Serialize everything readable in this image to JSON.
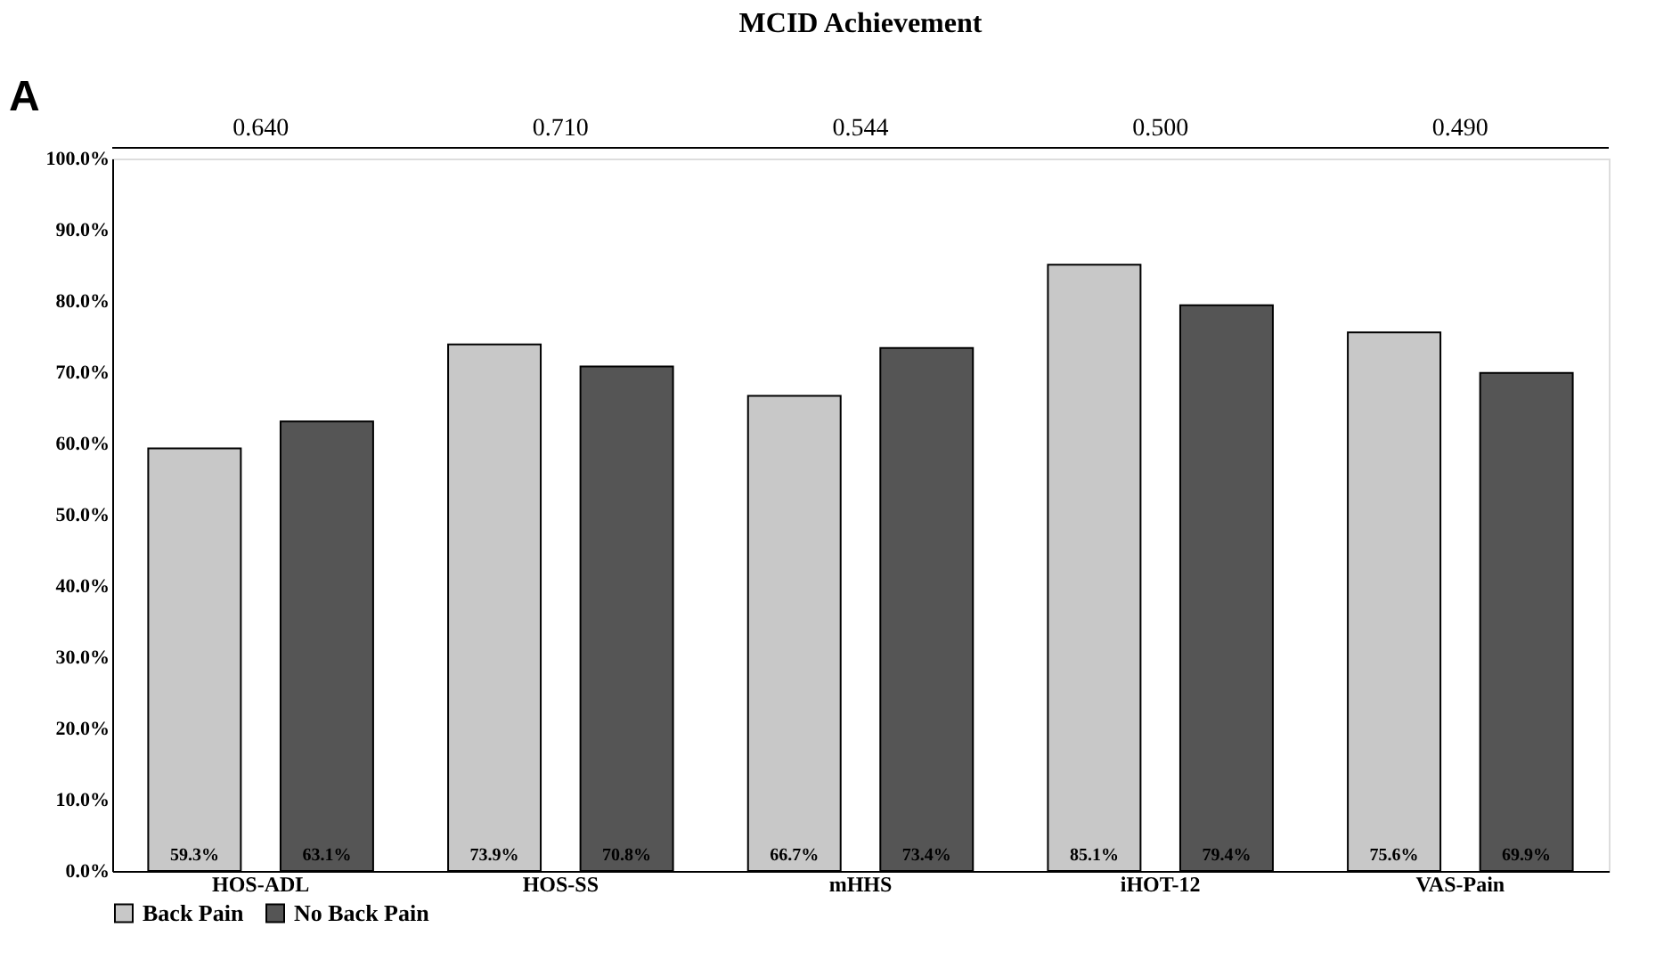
{
  "chart_data": {
    "type": "bar",
    "title": "MCID Achievement",
    "categories": [
      "HOS-ADL",
      "HOS-SS",
      "mHHS",
      "iHOT-12",
      "VAS-Pain"
    ],
    "series": [
      {
        "name": "Back Pain",
        "color": "#c8c8c8",
        "values": [
          59.3,
          73.9,
          66.7,
          85.1,
          75.6
        ],
        "value_labels": [
          "59.3%",
          "73.9%",
          "66.7%",
          "85.1%",
          "75.6%"
        ]
      },
      {
        "name": "No Back Pain",
        "color": "#555555",
        "values": [
          63.1,
          70.8,
          73.4,
          79.4,
          69.9
        ],
        "value_labels": [
          "63.1%",
          "70.8%",
          "73.4%",
          "79.4%",
          "69.9%"
        ]
      }
    ],
    "ylim": [
      0,
      100
    ],
    "yticks": [
      {
        "value": 0,
        "label": "0.0%"
      },
      {
        "value": 10,
        "label": "10.0%"
      },
      {
        "value": 20,
        "label": "20.0%"
      },
      {
        "value": 30,
        "label": "30.0%"
      },
      {
        "value": 40,
        "label": "40.0%"
      },
      {
        "value": 50,
        "label": "50.0%"
      },
      {
        "value": 60,
        "label": "60.0%"
      },
      {
        "value": 70,
        "label": "70.0%"
      },
      {
        "value": 80,
        "label": "80.0%"
      },
      {
        "value": 90,
        "label": "90.0%"
      },
      {
        "value": 100,
        "label": "100.0%"
      }
    ],
    "annotations": [
      "A",
      "0.640",
      "0.710",
      "0.544",
      "0.500",
      "0.490"
    ],
    "legend": "bottom",
    "grid": false
  }
}
